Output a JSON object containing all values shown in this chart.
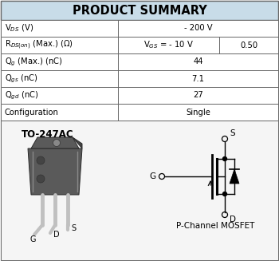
{
  "title": "PRODUCT SUMMARY",
  "title_bg": "#c8dce8",
  "table_bg": "#ffffff",
  "border_color": "#666666",
  "rows": [
    {
      "label": "V$_{DS}$ (V)",
      "col2": "- 200 V",
      "col3": null
    },
    {
      "label": "R$_{DS(on)}$ (Max.) (Ω)",
      "col2": "V$_{GS}$ = - 10 V",
      "col3": "0.50"
    },
    {
      "label": "Q$_g$ (Max.) (nC)",
      "col2": "44",
      "col3": null
    },
    {
      "label": "Q$_{gs}$ (nC)",
      "col2": "7.1",
      "col3": null
    },
    {
      "label": "Q$_{gd}$ (nC)",
      "col2": "27",
      "col3": null
    },
    {
      "label": "Configuration",
      "col2": "Single",
      "col3": null
    }
  ],
  "package_label": "TO-247AC",
  "mosfet_label": "P-Channel MOSFET",
  "bg_color": "#f5f5f5"
}
